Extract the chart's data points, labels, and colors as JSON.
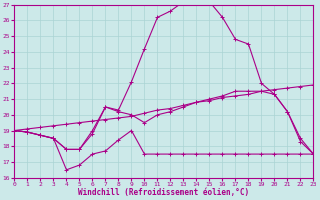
{
  "xlabel": "Windchill (Refroidissement éolien,°C)",
  "background_color": "#cce9e9",
  "grid_color": "#aad4d4",
  "line_color": "#aa0088",
  "xlim": [
    0,
    23
  ],
  "ylim": [
    16,
    27
  ],
  "yticks": [
    16,
    17,
    18,
    19,
    20,
    21,
    22,
    23,
    24,
    25,
    26,
    27
  ],
  "xticks": [
    0,
    1,
    2,
    3,
    4,
    5,
    6,
    7,
    8,
    9,
    10,
    11,
    12,
    13,
    14,
    15,
    16,
    17,
    18,
    19,
    20,
    21,
    22,
    23
  ],
  "series1_x": [
    0,
    1,
    2,
    3,
    4,
    5,
    6,
    7,
    8,
    9,
    10,
    11,
    12,
    13,
    14,
    15,
    16,
    17,
    18,
    19,
    20,
    21,
    22,
    23
  ],
  "series1_y": [
    19.0,
    18.9,
    18.7,
    18.5,
    16.5,
    16.8,
    17.5,
    17.7,
    18.4,
    19.0,
    17.5,
    17.5,
    17.5,
    17.5,
    17.5,
    17.5,
    17.5,
    17.5,
    17.5,
    17.5,
    17.5,
    17.5,
    17.5,
    17.5
  ],
  "series2_x": [
    0,
    1,
    2,
    3,
    4,
    5,
    6,
    7,
    8,
    9,
    10,
    11,
    12,
    13,
    14,
    15,
    16,
    17,
    18,
    19,
    20,
    21,
    22,
    23
  ],
  "series2_y": [
    19.0,
    18.9,
    18.7,
    18.5,
    17.8,
    17.8,
    18.8,
    20.5,
    20.2,
    20.0,
    19.5,
    20.0,
    20.2,
    20.5,
    20.8,
    21.0,
    21.2,
    21.5,
    21.5,
    21.5,
    21.3,
    20.2,
    18.5,
    17.5
  ],
  "series3_x": [
    0,
    1,
    2,
    3,
    4,
    5,
    6,
    7,
    8,
    9,
    10,
    11,
    12,
    13,
    14,
    15,
    16,
    17,
    18,
    19,
    20,
    21,
    22,
    23
  ],
  "series3_y": [
    19.0,
    19.1,
    19.2,
    19.3,
    19.4,
    19.5,
    19.6,
    19.7,
    19.8,
    19.9,
    20.1,
    20.3,
    20.4,
    20.6,
    20.8,
    20.9,
    21.1,
    21.2,
    21.3,
    21.5,
    21.6,
    21.7,
    21.8,
    21.9
  ],
  "series4_x": [
    0,
    1,
    2,
    3,
    4,
    5,
    6,
    7,
    8,
    9,
    10,
    11,
    12,
    13,
    14,
    15,
    16,
    17,
    18,
    19,
    20,
    21,
    22,
    23
  ],
  "series4_y": [
    19.0,
    18.9,
    18.7,
    18.5,
    17.8,
    17.8,
    19.0,
    20.5,
    20.3,
    22.1,
    24.2,
    26.2,
    26.6,
    27.2,
    27.3,
    27.2,
    26.2,
    24.8,
    24.5,
    22.0,
    21.3,
    20.2,
    18.3,
    17.5
  ]
}
